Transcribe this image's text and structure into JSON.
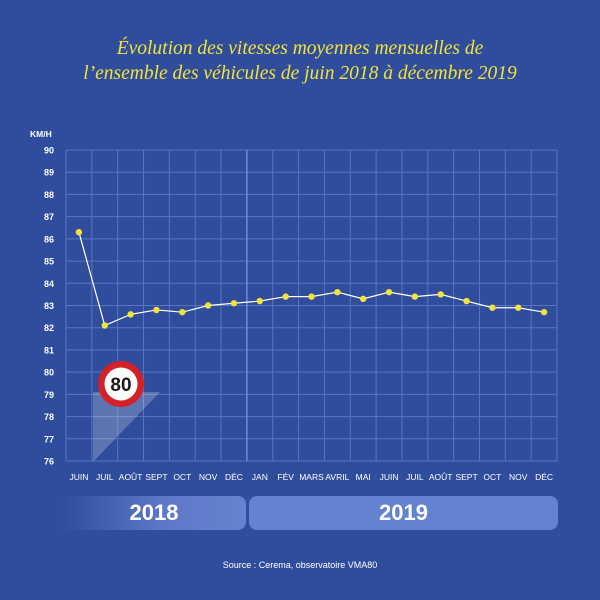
{
  "title": {
    "line1": "Évolution des vitesses moyennes mensuelles de",
    "line2": "l’ensemble des véhicules de juin 2018 à décembre 2019"
  },
  "chart_data": {
    "type": "line",
    "ylabel": "KM/H",
    "ylim": [
      76,
      90
    ],
    "yticks": [
      76,
      77,
      78,
      79,
      80,
      81,
      82,
      83,
      84,
      85,
      86,
      87,
      88,
      89,
      90
    ],
    "categories": [
      "JUIN",
      "JUIL",
      "AOÛT",
      "SEPT",
      "OCT",
      "NOV",
      "DÉC",
      "JAN",
      "FÉV",
      "MARS",
      "AVRIL",
      "MAI",
      "JUIN",
      "JUIL",
      "AOÛT",
      "SEPT",
      "OCT",
      "NOV",
      "DÉC"
    ],
    "values": [
      86.3,
      82.1,
      82.6,
      82.8,
      82.7,
      83.0,
      83.1,
      83.2,
      83.4,
      83.4,
      83.6,
      83.3,
      83.6,
      83.4,
      83.5,
      83.2,
      82.9,
      82.9,
      82.7
    ],
    "years": [
      "2018",
      "2019"
    ],
    "grid": true,
    "line_color": "#ffffff",
    "point_color": "#f2e33a"
  },
  "speed_sign": {
    "value": "80"
  },
  "source": "Source : Cerema, observatoire VMA80",
  "colors": {
    "background": "#2f4d9c",
    "title": "#f2e33a",
    "grid": "#5b74c0",
    "year_bar": "#6382cf",
    "sign_ring": "#d42027"
  }
}
